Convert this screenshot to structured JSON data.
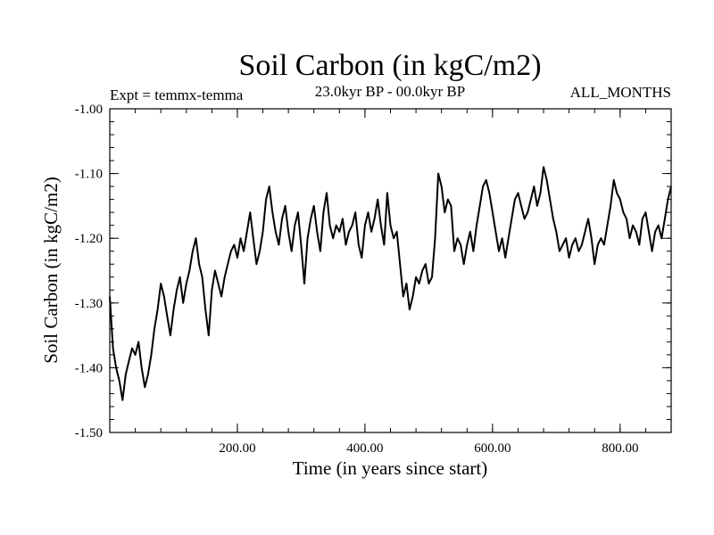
{
  "chart_data": {
    "type": "line",
    "title": "Soil Carbon (in kgC/m2)",
    "subtitle_left": "Expt = temmx-temma",
    "subtitle_center": "23.0kyr BP - 00.0kyr BP",
    "subtitle_right": "ALL_MONTHS",
    "xlabel": "Time (in years since start)",
    "ylabel": "Soil Carbon (in kgC/m2)",
    "xlim": [
      0,
      880
    ],
    "ylim": [
      -1.5,
      -1.0
    ],
    "xticks": [
      200,
      400,
      600,
      800
    ],
    "xtick_labels": [
      "200.00",
      "400.00",
      "600.00",
      "800.00"
    ],
    "yticks": [
      -1.0,
      -1.1,
      -1.2,
      -1.3,
      -1.4,
      -1.5
    ],
    "ytick_labels": [
      "-1.00",
      "-1.10",
      "-1.20",
      "-1.30",
      "-1.40",
      "-1.50"
    ],
    "grid": false,
    "series": [
      {
        "name": "Soil Carbon",
        "x": [
          0,
          5,
          10,
          15,
          20,
          25,
          30,
          35,
          40,
          45,
          50,
          55,
          60,
          65,
          70,
          75,
          80,
          85,
          90,
          95,
          100,
          105,
          110,
          115,
          120,
          125,
          130,
          135,
          140,
          145,
          150,
          155,
          160,
          165,
          170,
          175,
          180,
          185,
          190,
          195,
          200,
          205,
          210,
          215,
          220,
          225,
          230,
          235,
          240,
          245,
          250,
          255,
          260,
          265,
          270,
          275,
          280,
          285,
          290,
          295,
          300,
          305,
          310,
          315,
          320,
          325,
          330,
          335,
          340,
          345,
          350,
          355,
          360,
          365,
          370,
          375,
          380,
          385,
          390,
          395,
          400,
          405,
          410,
          415,
          420,
          425,
          430,
          435,
          440,
          445,
          450,
          455,
          460,
          465,
          470,
          475,
          480,
          485,
          490,
          495,
          500,
          505,
          510,
          515,
          520,
          525,
          530,
          535,
          540,
          545,
          550,
          555,
          560,
          565,
          570,
          575,
          580,
          585,
          590,
          595,
          600,
          605,
          610,
          615,
          620,
          625,
          630,
          635,
          640,
          645,
          650,
          655,
          660,
          665,
          670,
          675,
          680,
          685,
          690,
          695,
          700,
          705,
          710,
          715,
          720,
          725,
          730,
          735,
          740,
          745,
          750,
          755,
          760,
          765,
          770,
          775,
          780,
          785,
          790,
          795,
          800,
          805,
          810,
          815,
          820,
          825,
          830,
          835,
          840,
          845,
          850,
          855,
          860,
          865,
          870,
          875,
          880
        ],
        "values": [
          -1.29,
          -1.37,
          -1.4,
          -1.42,
          -1.45,
          -1.41,
          -1.39,
          -1.37,
          -1.38,
          -1.36,
          -1.4,
          -1.43,
          -1.41,
          -1.38,
          -1.34,
          -1.31,
          -1.27,
          -1.29,
          -1.32,
          -1.35,
          -1.31,
          -1.28,
          -1.26,
          -1.3,
          -1.27,
          -1.25,
          -1.22,
          -1.2,
          -1.24,
          -1.26,
          -1.31,
          -1.35,
          -1.28,
          -1.25,
          -1.27,
          -1.29,
          -1.26,
          -1.24,
          -1.22,
          -1.21,
          -1.23,
          -1.2,
          -1.22,
          -1.19,
          -1.16,
          -1.2,
          -1.24,
          -1.22,
          -1.19,
          -1.14,
          -1.12,
          -1.16,
          -1.19,
          -1.21,
          -1.17,
          -1.15,
          -1.19,
          -1.22,
          -1.18,
          -1.16,
          -1.21,
          -1.27,
          -1.2,
          -1.17,
          -1.15,
          -1.19,
          -1.22,
          -1.16,
          -1.13,
          -1.18,
          -1.2,
          -1.18,
          -1.19,
          -1.17,
          -1.21,
          -1.19,
          -1.18,
          -1.16,
          -1.21,
          -1.23,
          -1.18,
          -1.16,
          -1.19,
          -1.17,
          -1.14,
          -1.18,
          -1.21,
          -1.13,
          -1.18,
          -1.2,
          -1.19,
          -1.24,
          -1.29,
          -1.27,
          -1.31,
          -1.29,
          -1.26,
          -1.27,
          -1.25,
          -1.24,
          -1.27,
          -1.26,
          -1.2,
          -1.1,
          -1.12,
          -1.16,
          -1.14,
          -1.15,
          -1.22,
          -1.2,
          -1.21,
          -1.24,
          -1.21,
          -1.19,
          -1.22,
          -1.18,
          -1.15,
          -1.12,
          -1.11,
          -1.13,
          -1.16,
          -1.19,
          -1.22,
          -1.2,
          -1.23,
          -1.2,
          -1.17,
          -1.14,
          -1.13,
          -1.15,
          -1.17,
          -1.16,
          -1.14,
          -1.12,
          -1.15,
          -1.13,
          -1.09,
          -1.11,
          -1.14,
          -1.17,
          -1.19,
          -1.22,
          -1.21,
          -1.2,
          -1.23,
          -1.21,
          -1.2,
          -1.22,
          -1.21,
          -1.19,
          -1.17,
          -1.2,
          -1.24,
          -1.21,
          -1.2,
          -1.21,
          -1.18,
          -1.15,
          -1.11,
          -1.13,
          -1.14,
          -1.16,
          -1.17,
          -1.2,
          -1.18,
          -1.19,
          -1.21,
          -1.17,
          -1.16,
          -1.19,
          -1.22,
          -1.19,
          -1.18,
          -1.2,
          -1.17,
          -1.14,
          -1.12
        ]
      }
    ]
  }
}
